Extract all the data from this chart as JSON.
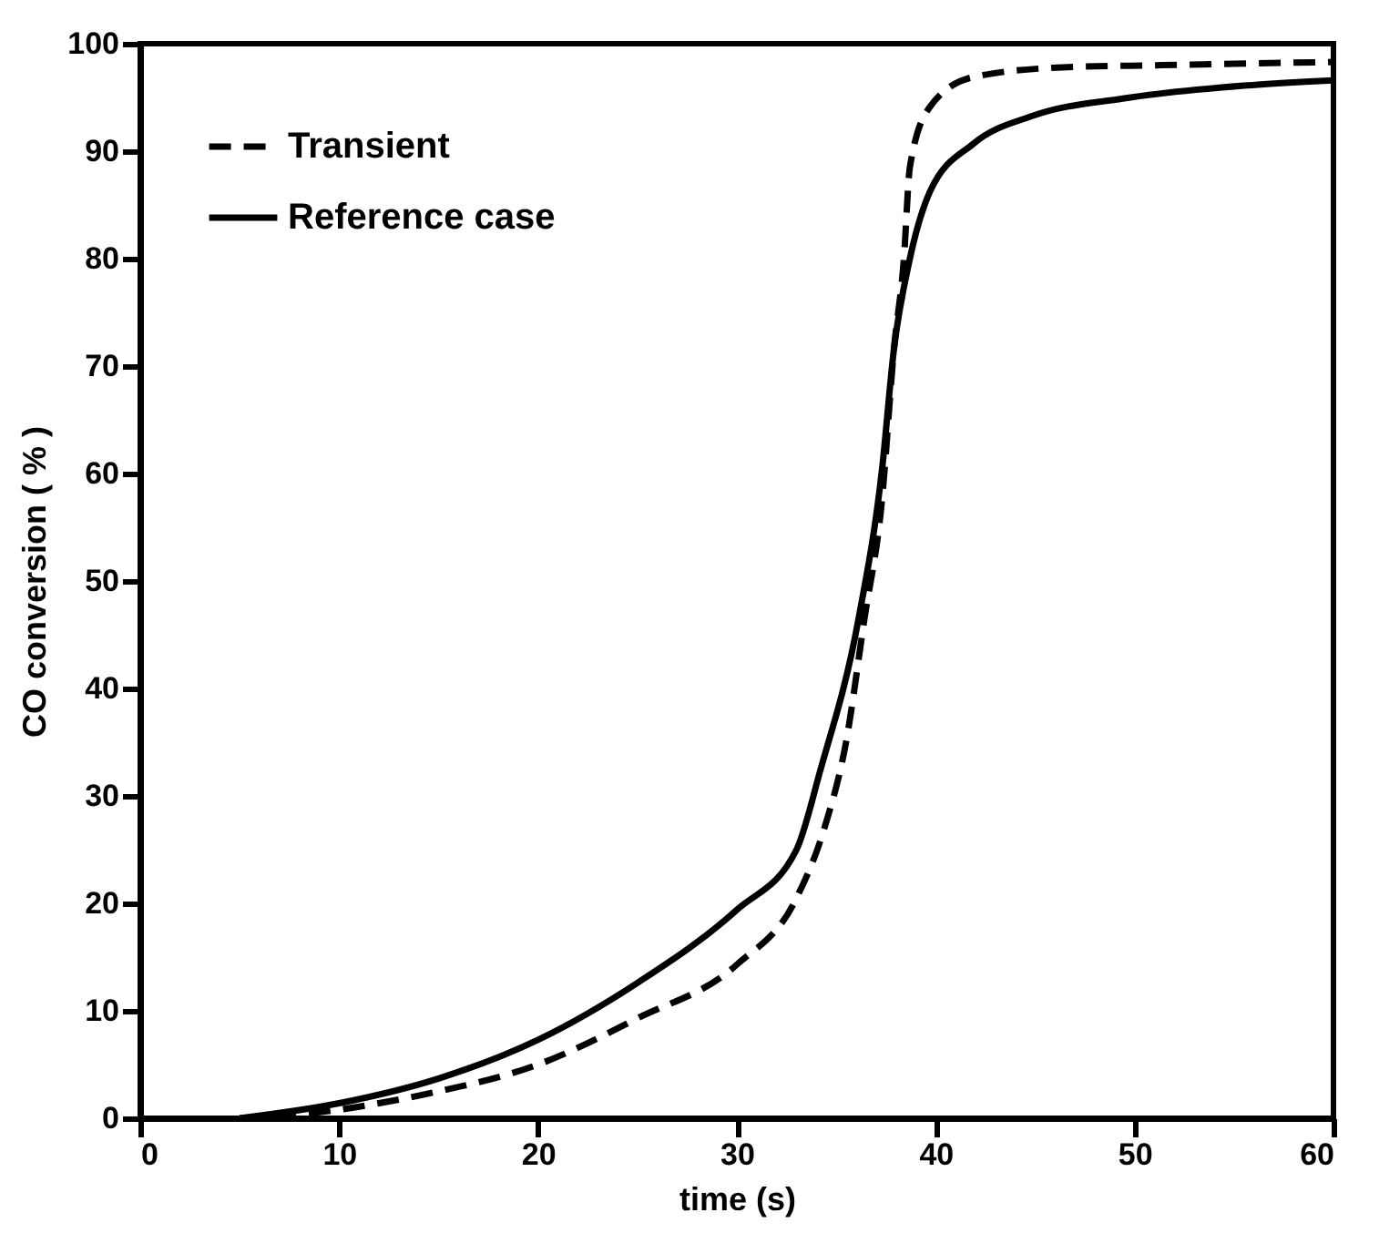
{
  "chart_data": {
    "type": "line",
    "xlabel": "time (s)",
    "ylabel": "CO conversion ( % )",
    "xlim": [
      0,
      60
    ],
    "ylim": [
      0,
      100
    ],
    "xticks": [
      0,
      10,
      20,
      30,
      40,
      50,
      60
    ],
    "yticks": [
      0,
      10,
      20,
      30,
      40,
      50,
      60,
      70,
      80,
      90,
      100
    ],
    "grid": false,
    "legend": "top left",
    "marker": "none",
    "series": [
      {
        "name": "Transient",
        "color": "#000000",
        "line_style": "dashed",
        "x": [
          5,
          10,
          12,
          15,
          20,
          25,
          30,
          33,
          34.4,
          35.5,
          36.4,
          37.3,
          37.9,
          38.4,
          38.7,
          39.7,
          41.9,
          46.4,
          51.3,
          60
        ],
        "values": [
          0,
          0.8,
          1.4,
          2.5,
          5,
          9.3,
          14.3,
          20.5,
          27,
          35.1,
          46.3,
          57.6,
          71.6,
          80,
          88.5,
          94.1,
          96.9,
          97.8,
          98,
          98.3
        ]
      },
      {
        "name": "Reference case",
        "color": "#000000",
        "line_style": "solid",
        "x": [
          5,
          10,
          15,
          20,
          25,
          30,
          33,
          34.2,
          36.1,
          37.3,
          37.9,
          38.7,
          39.7,
          41.9,
          44.9,
          49.4,
          55.5,
          60
        ],
        "values": [
          0,
          1.4,
          3.7,
          7.3,
          12.6,
          19.4,
          25,
          32.4,
          46.3,
          60.4,
          71.6,
          80,
          86.2,
          90.7,
          93.3,
          94.9,
          96.1,
          96.6
        ]
      }
    ]
  }
}
